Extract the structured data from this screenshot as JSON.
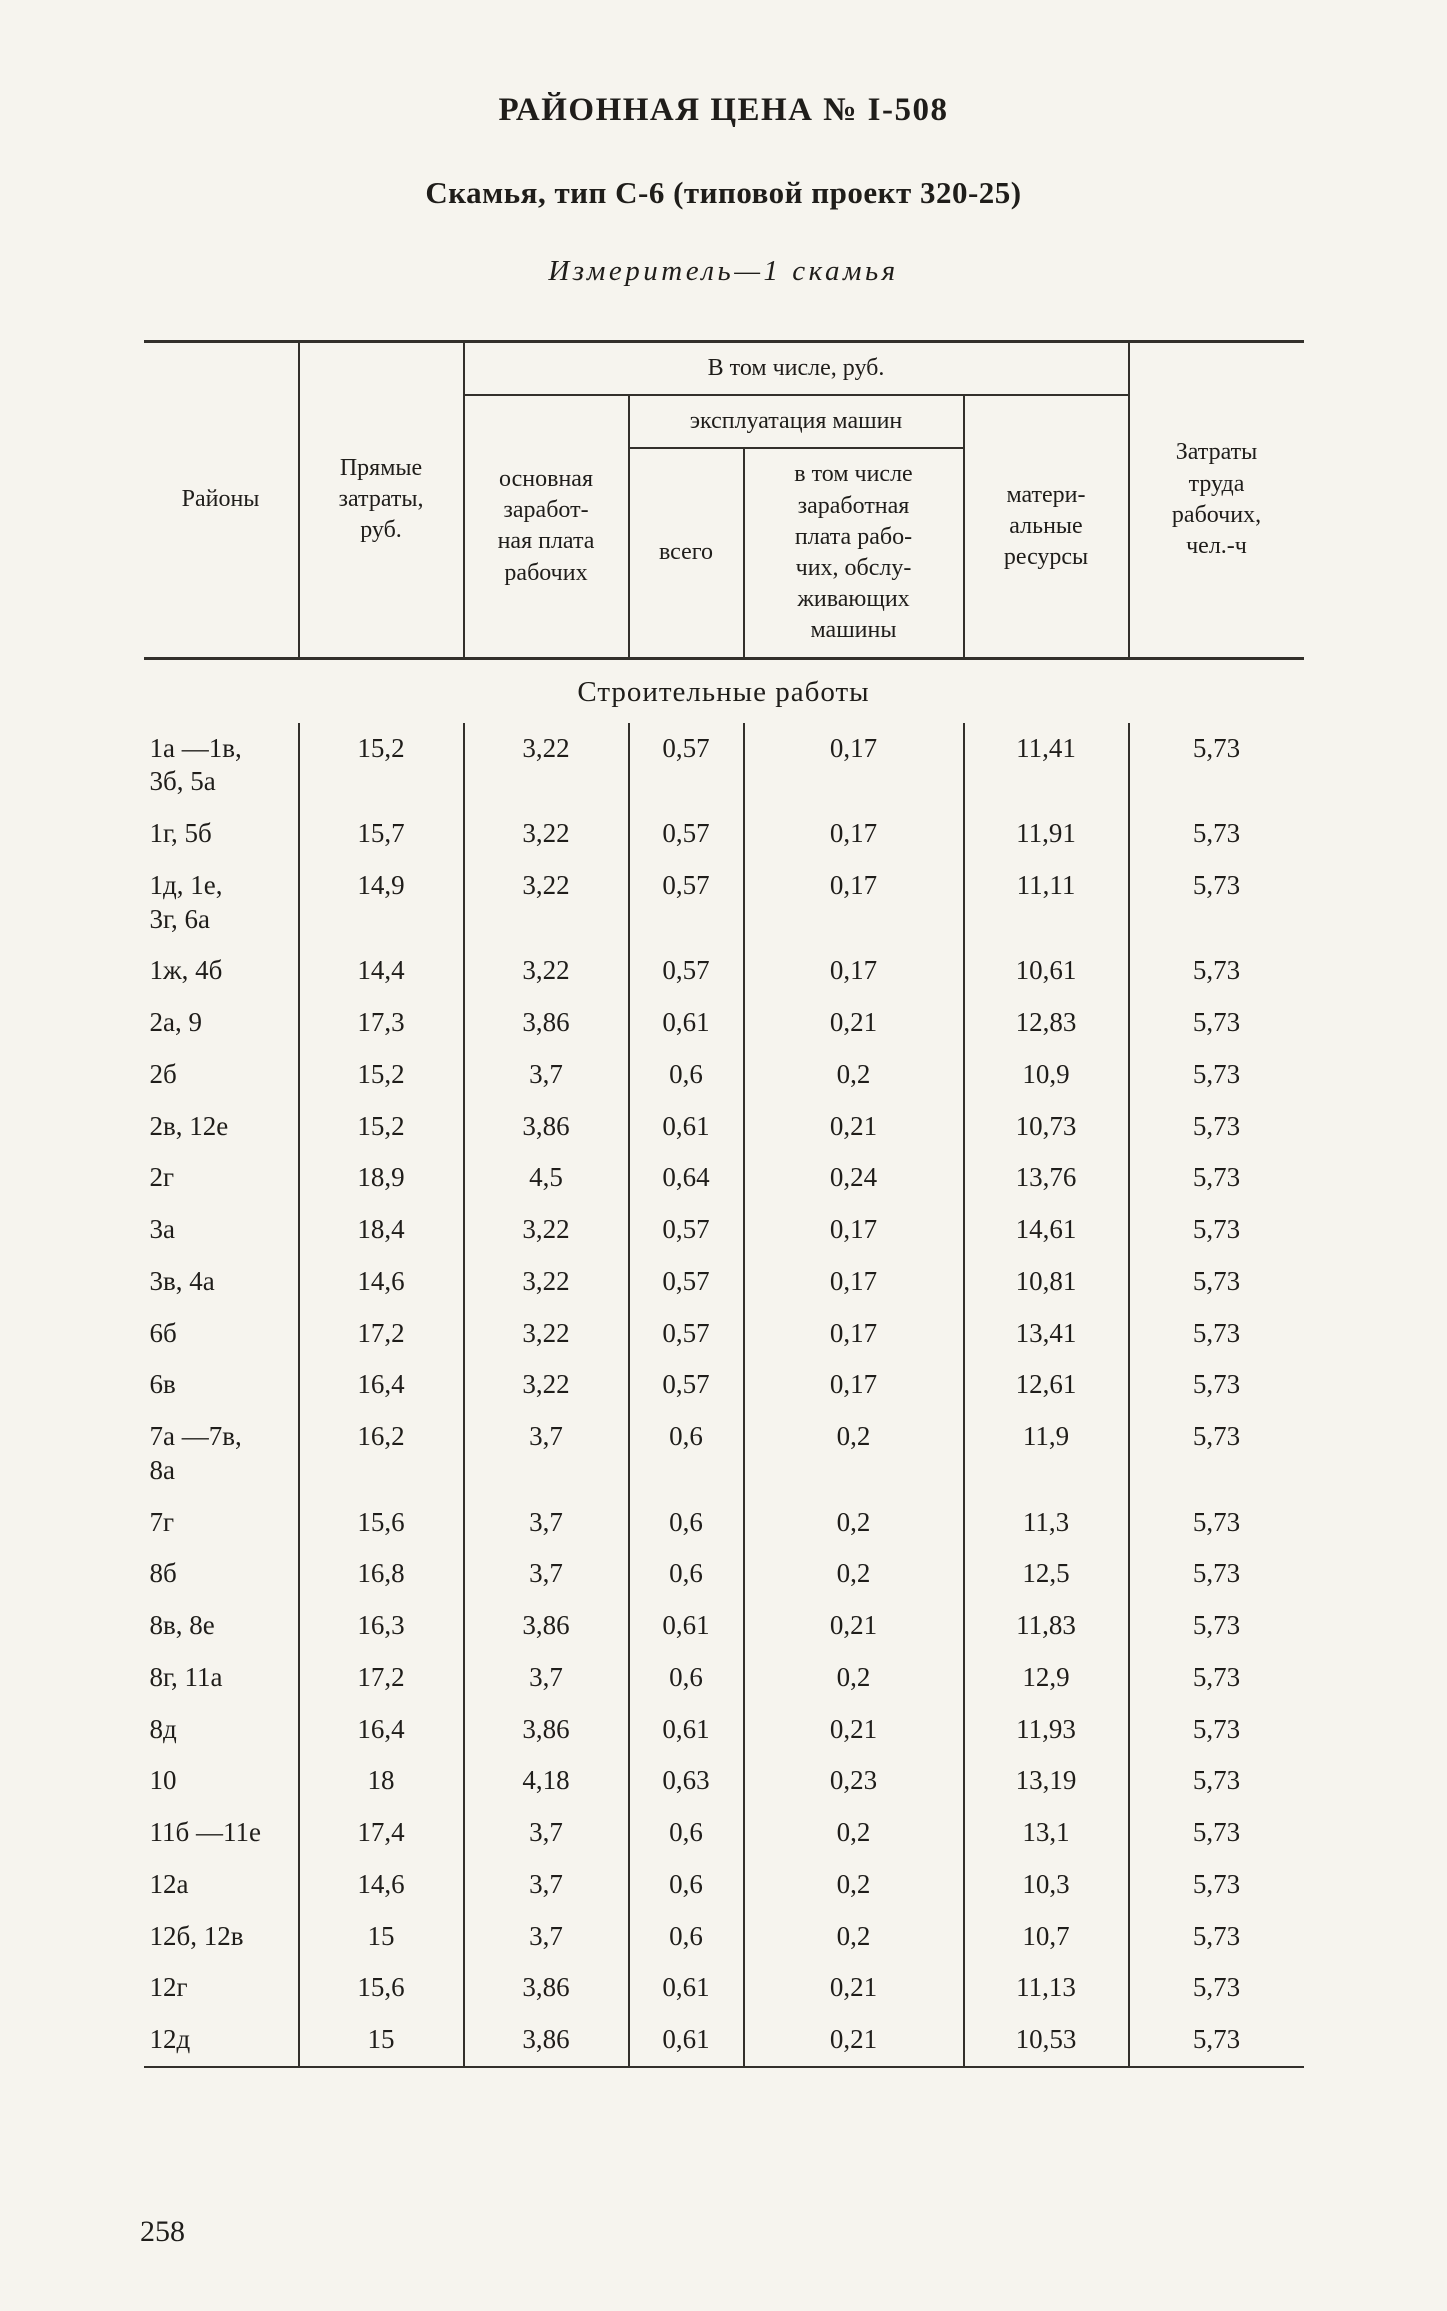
{
  "page": {
    "title": "РАЙОННАЯ ЦЕНА № I-508",
    "subtitle": "Скамья, тип С-6 (типовой проект 320-25)",
    "measure": "Измеритель—1 скамья",
    "section_header": "Строительные работы",
    "page_number": "258"
  },
  "table": {
    "headers": {
      "regions": "Районы",
      "direct_costs": "Прямые\nзатраты,\nруб.",
      "including": "В том числе, руб.",
      "basic_wage": "основная\nзаработ-\nная плата\nрабочих",
      "machine_operation": "эксплуатация машин",
      "total": "всего",
      "including_machine_wage": "в том числе\nзаработная\nплата рабо-\nчих, обслу-\nживающих\nмашины",
      "material_resources": "матери-\nальные\nресурсы",
      "labor_costs": "Затраты\nтруда\nрабочих,\nчел.-ч"
    },
    "rows": [
      {
        "region": "1а —1в,\n3б, 5а",
        "values": [
          "15,2",
          "3,22",
          "0,57",
          "0,17",
          "11,41",
          "5,73"
        ]
      },
      {
        "region": "1г, 5б",
        "values": [
          "15,7",
          "3,22",
          "0,57",
          "0,17",
          "11,91",
          "5,73"
        ]
      },
      {
        "region": "1д, 1е,\n3г, 6а",
        "values": [
          "14,9",
          "3,22",
          "0,57",
          "0,17",
          "11,11",
          "5,73"
        ]
      },
      {
        "region": "1ж, 4б",
        "values": [
          "14,4",
          "3,22",
          "0,57",
          "0,17",
          "10,61",
          "5,73"
        ]
      },
      {
        "region": "2а, 9",
        "values": [
          "17,3",
          "3,86",
          "0,61",
          "0,21",
          "12,83",
          "5,73"
        ]
      },
      {
        "region": "2б",
        "values": [
          "15,2",
          "3,7",
          "0,6",
          "0,2",
          "10,9",
          "5,73"
        ]
      },
      {
        "region": "2в, 12е",
        "values": [
          "15,2",
          "3,86",
          "0,61",
          "0,21",
          "10,73",
          "5,73"
        ]
      },
      {
        "region": "2г",
        "values": [
          "18,9",
          "4,5",
          "0,64",
          "0,24",
          "13,76",
          "5,73"
        ]
      },
      {
        "region": "3а",
        "values": [
          "18,4",
          "3,22",
          "0,57",
          "0,17",
          "14,61",
          "5,73"
        ]
      },
      {
        "region": "3в, 4а",
        "values": [
          "14,6",
          "3,22",
          "0,57",
          "0,17",
          "10,81",
          "5,73"
        ]
      },
      {
        "region": "6б",
        "values": [
          "17,2",
          "3,22",
          "0,57",
          "0,17",
          "13,41",
          "5,73"
        ]
      },
      {
        "region": "6в",
        "values": [
          "16,4",
          "3,22",
          "0,57",
          "0,17",
          "12,61",
          "5,73"
        ]
      },
      {
        "region": "7а —7в,\n8а",
        "values": [
          "16,2",
          "3,7",
          "0,6",
          "0,2",
          "11,9",
          "5,73"
        ]
      },
      {
        "region": "7г",
        "values": [
          "15,6",
          "3,7",
          "0,6",
          "0,2",
          "11,3",
          "5,73"
        ]
      },
      {
        "region": "8б",
        "values": [
          "16,8",
          "3,7",
          "0,6",
          "0,2",
          "12,5",
          "5,73"
        ]
      },
      {
        "region": "8в, 8е",
        "values": [
          "16,3",
          "3,86",
          "0,61",
          "0,21",
          "11,83",
          "5,73"
        ]
      },
      {
        "region": "8г, 11а",
        "values": [
          "17,2",
          "3,7",
          "0,6",
          "0,2",
          "12,9",
          "5,73"
        ]
      },
      {
        "region": "8д",
        "values": [
          "16,4",
          "3,86",
          "0,61",
          "0,21",
          "11,93",
          "5,73"
        ]
      },
      {
        "region": "10",
        "values": [
          "18",
          "4,18",
          "0,63",
          "0,23",
          "13,19",
          "5,73"
        ]
      },
      {
        "region": "11б —11е",
        "values": [
          "17,4",
          "3,7",
          "0,6",
          "0,2",
          "13,1",
          "5,73"
        ]
      },
      {
        "region": "12а",
        "values": [
          "14,6",
          "3,7",
          "0,6",
          "0,2",
          "10,3",
          "5,73"
        ]
      },
      {
        "region": "12б, 12в",
        "values": [
          "15",
          "3,7",
          "0,6",
          "0,2",
          "10,7",
          "5,73"
        ]
      },
      {
        "region": "12г",
        "values": [
          "15,6",
          "3,86",
          "0,61",
          "0,21",
          "11,13",
          "5,73"
        ]
      },
      {
        "region": "12д",
        "values": [
          "15",
          "3,86",
          "0,61",
          "0,21",
          "10,53",
          "5,73"
        ]
      }
    ]
  }
}
